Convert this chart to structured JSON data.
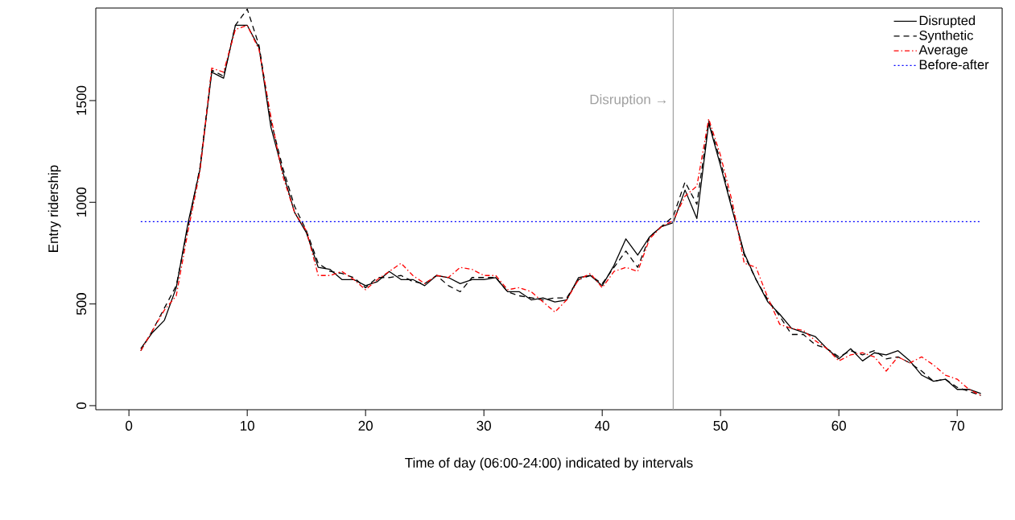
{
  "chart_data": {
    "type": "line",
    "xlabel": "Time of day (06:00-24:00) indicated by intervals",
    "ylabel": "Entry ridership",
    "x": [
      1,
      2,
      3,
      4,
      5,
      6,
      7,
      8,
      9,
      10,
      11,
      12,
      13,
      14,
      15,
      16,
      17,
      18,
      19,
      20,
      21,
      22,
      23,
      24,
      25,
      26,
      27,
      28,
      29,
      30,
      31,
      32,
      33,
      34,
      35,
      36,
      37,
      38,
      39,
      40,
      41,
      42,
      43,
      44,
      45,
      46,
      47,
      48,
      49,
      50,
      51,
      52,
      53,
      54,
      55,
      56,
      57,
      58,
      59,
      60,
      61,
      62,
      63,
      64,
      65,
      66,
      67,
      68,
      69,
      70,
      71,
      72
    ],
    "xlim": [
      -2.8,
      73.8
    ],
    "xticks": [
      0,
      10,
      20,
      30,
      40,
      50,
      60,
      70
    ],
    "ylim": [
      -20,
      1955
    ],
    "yticks": [
      0,
      500,
      1000,
      1500
    ],
    "legend": "top right",
    "grid": false,
    "series": [
      {
        "name": "Disrupted",
        "color": "#000000",
        "line_style": "solid",
        "values": [
          280,
          360,
          420,
          580,
          900,
          1160,
          1640,
          1610,
          1870,
          1870,
          1760,
          1370,
          1150,
          950,
          850,
          680,
          670,
          620,
          620,
          590,
          610,
          660,
          620,
          620,
          590,
          640,
          630,
          600,
          620,
          620,
          630,
          560,
          560,
          520,
          530,
          510,
          520,
          630,
          640,
          590,
          690,
          820,
          740,
          830,
          880,
          900,
          1060,
          920,
          1390,
          1180,
          960,
          750,
          620,
          510,
          450,
          380,
          360,
          340,
          280,
          230,
          280,
          220,
          260,
          250,
          270,
          220,
          150,
          120,
          130,
          80,
          80,
          60
        ]
      },
      {
        "name": "Synthetic",
        "color": "#000000",
        "line_style": "dashed",
        "values": [
          270,
          370,
          480,
          590,
          880,
          1170,
          1650,
          1620,
          1870,
          1950,
          1770,
          1400,
          1170,
          980,
          860,
          700,
          660,
          650,
          630,
          580,
          630,
          630,
          640,
          610,
          600,
          640,
          590,
          560,
          630,
          630,
          630,
          560,
          540,
          530,
          520,
          530,
          530,
          620,
          640,
          600,
          680,
          760,
          680,
          830,
          880,
          930,
          1100,
          990,
          1400,
          1200,
          970,
          740,
          620,
          520,
          440,
          350,
          350,
          300,
          280,
          240,
          270,
          250,
          270,
          230,
          240,
          210,
          170,
          120,
          130,
          90,
          70,
          50
        ]
      },
      {
        "name": "Average",
        "color": "#ff0000",
        "line_style": "dashdot",
        "values": [
          270,
          370,
          470,
          540,
          860,
          1150,
          1660,
          1640,
          1850,
          1870,
          1750,
          1420,
          1130,
          950,
          860,
          640,
          640,
          660,
          620,
          570,
          620,
          660,
          700,
          640,
          600,
          640,
          630,
          680,
          670,
          640,
          640,
          570,
          580,
          560,
          510,
          460,
          520,
          620,
          650,
          580,
          660,
          680,
          660,
          820,
          880,
          910,
          1030,
          1080,
          1410,
          1230,
          1000,
          700,
          680,
          530,
          400,
          380,
          370,
          320,
          280,
          220,
          250,
          260,
          240,
          170,
          240,
          210,
          240,
          200,
          150,
          130,
          80,
          50
        ]
      },
      {
        "name": "Before-after",
        "color": "#0000ff",
        "line_style": "dotted",
        "x": [
          1,
          72
        ],
        "values": [
          905,
          905
        ]
      }
    ],
    "ref_lines": [
      {
        "axis": "x",
        "value": 46,
        "label": "Disruption →",
        "color": "#a0a0a0"
      }
    ]
  }
}
